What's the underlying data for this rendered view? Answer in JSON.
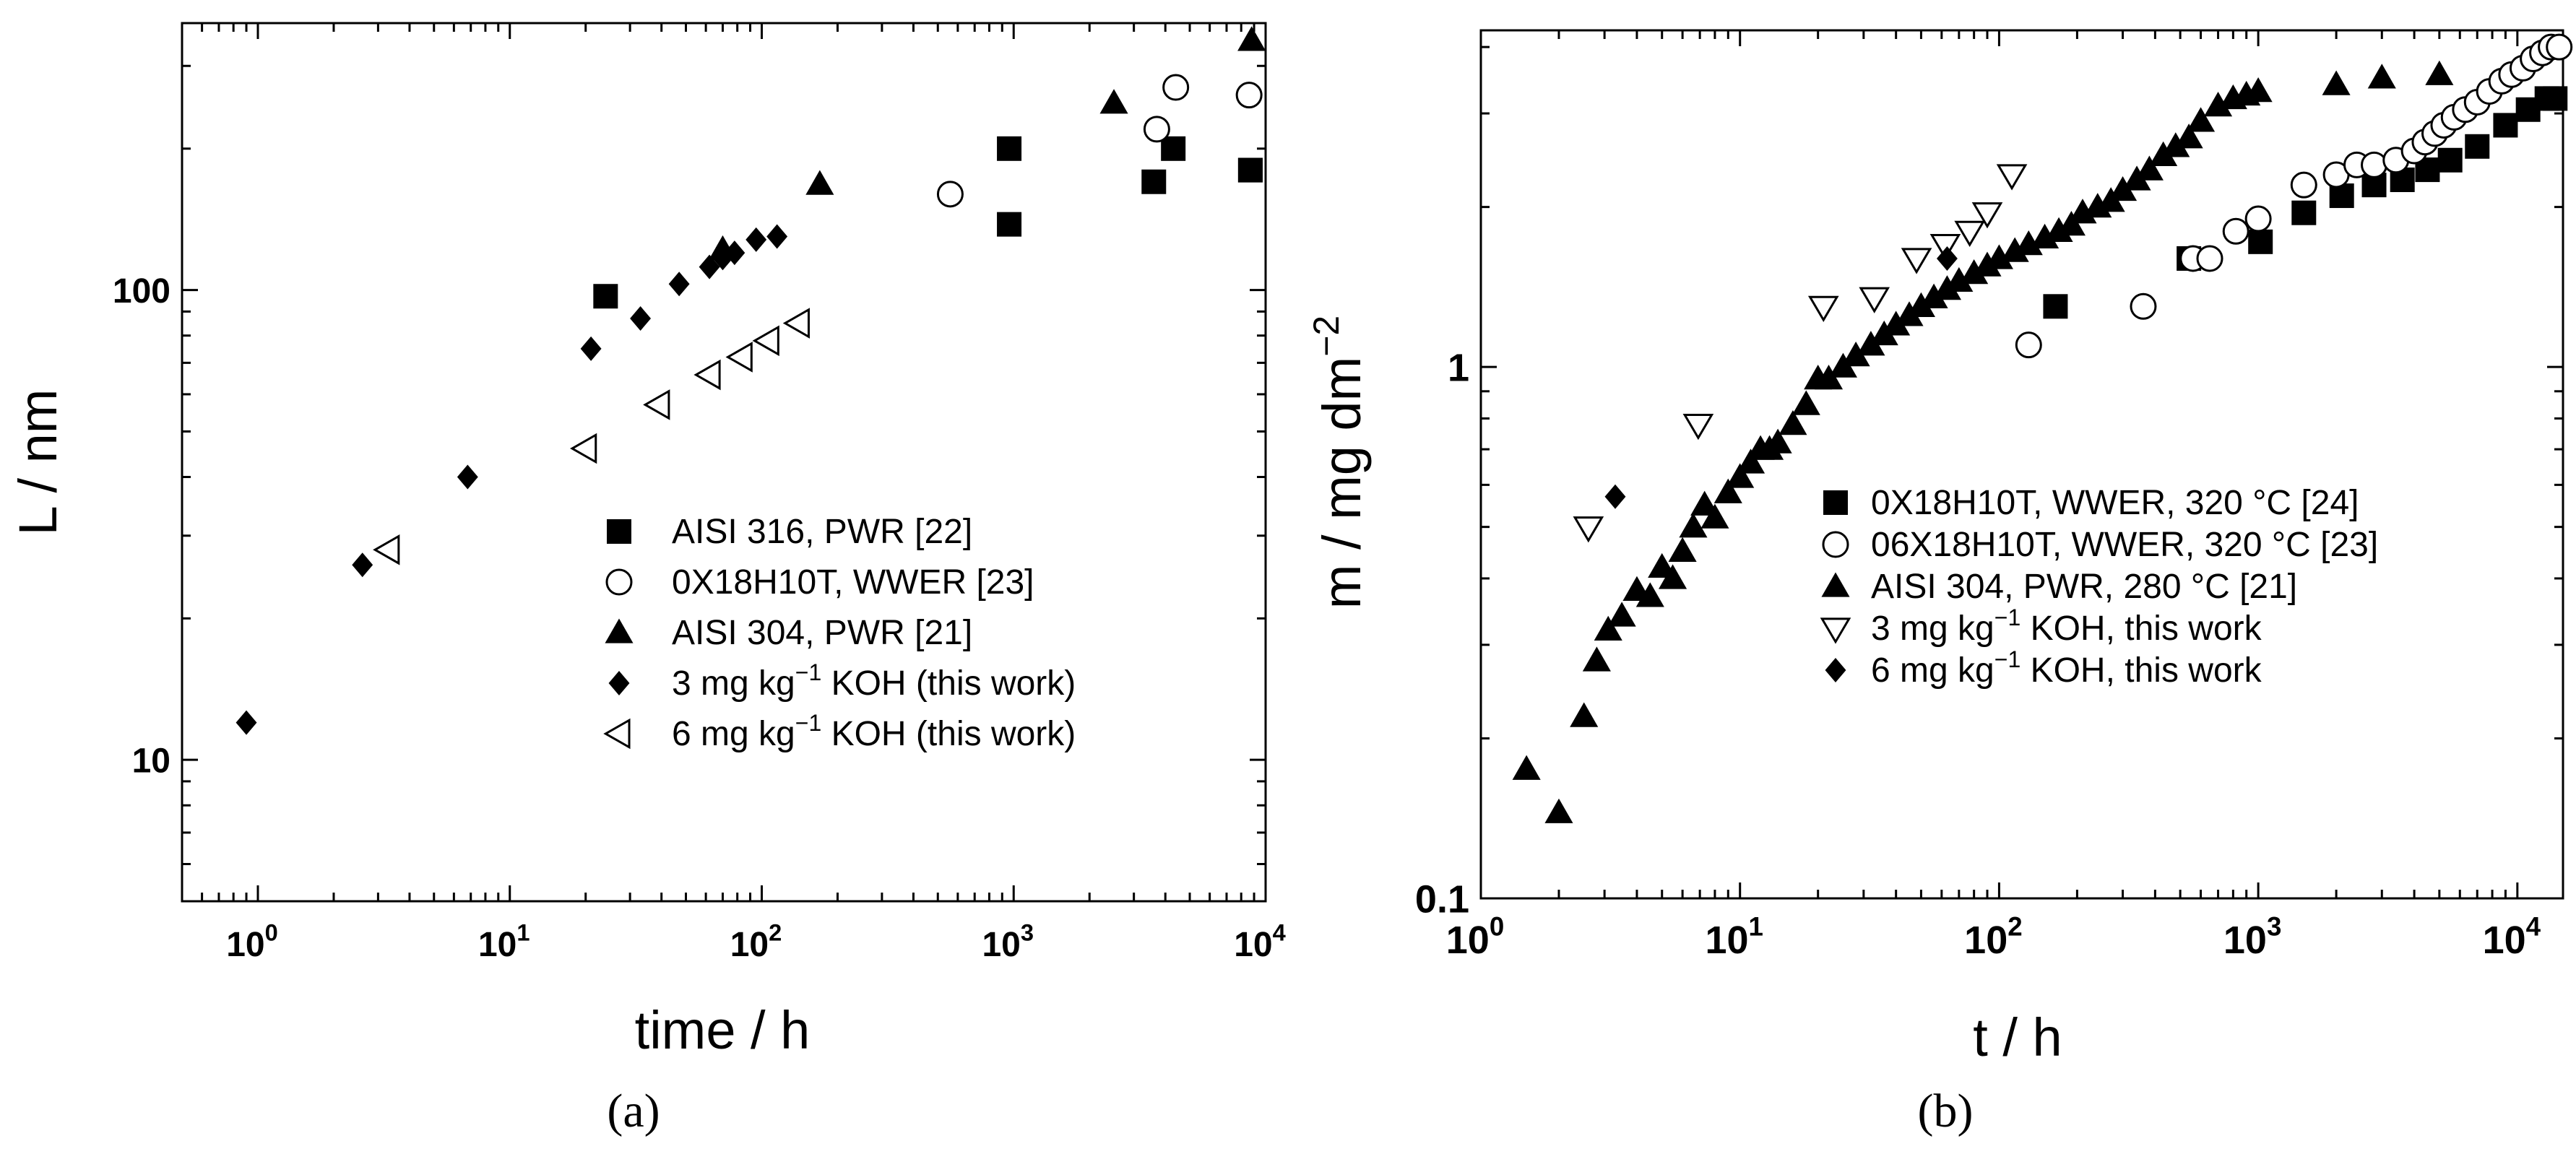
{
  "chart_data": [
    {
      "id": "a",
      "type": "scatter",
      "caption": "(a)",
      "xlabel": "time / h",
      "ylabel": "L / nm",
      "xscale": "log",
      "yscale": "log",
      "xlim": [
        0.5,
        10000
      ],
      "ylim": [
        5,
        370
      ],
      "xticks": [
        {
          "value": 1,
          "base": "10",
          "exp": "0"
        },
        {
          "value": 10,
          "base": "10",
          "exp": "1"
        },
        {
          "value": 100,
          "base": "10",
          "exp": "2"
        },
        {
          "value": 1000,
          "base": "10",
          "exp": "3"
        },
        {
          "value": 10000,
          "base": "10",
          "exp": "4"
        }
      ],
      "yticks": [
        {
          "value": 10,
          "label": "10"
        },
        {
          "value": 100,
          "label": "100"
        }
      ],
      "legend_position": "bottom-right",
      "series": [
        {
          "name": "AISI 316, PWR [22]",
          "label_parts": [
            "AISI 316, PWR [22]"
          ],
          "marker": "square",
          "x": [
            24,
            960,
            3600,
            4300,
            8700,
            960,
            8700
          ],
          "y": [
            97,
            200,
            170,
            200,
            180,
            138,
            180
          ]
        },
        {
          "name": "0X18H10T, WWER [23]",
          "label_parts": [
            "0X18H10T, WWER [23]"
          ],
          "marker": "circle",
          "x": [
            560,
            3700,
            4400,
            8600
          ],
          "y": [
            160,
            220,
            270,
            260
          ]
        },
        {
          "name": "AISI 304, PWR [21]",
          "label_parts": [
            "AISI 304, PWR [21]"
          ],
          "marker": "triangle-up",
          "x": [
            70,
            170,
            2500,
            8800
          ],
          "y": [
            122,
            168,
            250,
            340
          ]
        },
        {
          "name": "3 mg kg⁻¹ KOH (this work)",
          "label_parts": [
            "3 mg kg",
            "−1",
            " KOH (this work)"
          ],
          "marker": "diamond",
          "x": [
            0.9,
            2.6,
            6.8,
            21,
            33,
            47,
            62,
            70,
            78,
            95,
            115
          ],
          "y": [
            12,
            26,
            40,
            75,
            87,
            103,
            112,
            117,
            120,
            128,
            130
          ]
        },
        {
          "name": "6 mg kg⁻¹ KOH (this work)",
          "label_parts": [
            "6 mg kg",
            "−1",
            " KOH (this work)"
          ],
          "marker": "triangle-left",
          "x": [
            3.3,
            20,
            39,
            62,
            83,
            106,
            140
          ],
          "y": [
            28,
            46,
            57,
            66,
            72,
            78,
            85
          ]
        }
      ]
    },
    {
      "id": "b",
      "type": "scatter",
      "caption": "(b)",
      "xlabel": "t / h",
      "ylabel_parts": [
        "m / mg dm",
        "−2"
      ],
      "xscale": "log",
      "yscale": "log",
      "xlim": [
        1,
        15000
      ],
      "ylim": [
        0.1,
        4.3
      ],
      "xticks": [
        {
          "value": 1,
          "base": "10",
          "exp": "0"
        },
        {
          "value": 10,
          "base": "10",
          "exp": "1"
        },
        {
          "value": 100,
          "base": "10",
          "exp": "2"
        },
        {
          "value": 1000,
          "base": "10",
          "exp": "3"
        },
        {
          "value": 10000,
          "base": "10",
          "exp": "4"
        }
      ],
      "yticks": [
        {
          "value": 0.1,
          "label": "0.1"
        },
        {
          "value": 1,
          "label": "1"
        }
      ],
      "legend_position": "center-right",
      "series": [
        {
          "name": "0X18H10T, WWER, 320 °C [24]",
          "label_parts": [
            "0X18H10T, WWER, 320 °C [24]"
          ],
          "marker": "square",
          "x": [
            165,
            540,
            1020,
            1500,
            2100,
            2800,
            3600,
            4500,
            5500,
            7000,
            9000,
            11000,
            13000,
            14000
          ],
          "y": [
            1.3,
            1.6,
            1.72,
            1.95,
            2.1,
            2.2,
            2.25,
            2.35,
            2.45,
            2.6,
            2.85,
            3.05,
            3.2,
            3.2
          ]
        },
        {
          "name": "06X18H10T, WWER, 320 °C [23]",
          "label_parts": [
            "06X18H10T, WWER, 320 °C [23]"
          ],
          "marker": "circle",
          "x": [
            130,
            360,
            560,
            650,
            820,
            1000,
            1500,
            2000,
            2400,
            2800,
            3400,
            4000,
            4400,
            4800,
            5200,
            5700,
            6300,
            7000,
            7800,
            8700,
            9500,
            10500,
            11500,
            12500,
            13500,
            14500
          ],
          "y": [
            1.1,
            1.3,
            1.6,
            1.6,
            1.8,
            1.9,
            2.2,
            2.3,
            2.4,
            2.4,
            2.45,
            2.55,
            2.65,
            2.75,
            2.85,
            2.95,
            3.05,
            3.15,
            3.3,
            3.45,
            3.55,
            3.65,
            3.8,
            3.9,
            4.0,
            4.0
          ]
        },
        {
          "name": "AISI 304, PWR, 280 °C [21]",
          "label_parts": [
            "AISI 304, PWR, 280 °C [21]"
          ],
          "marker": "triangle-up",
          "x": [
            1.5,
            2.0,
            2.5,
            2.8,
            3.1,
            3.5,
            4.0,
            4.5,
            5.0,
            5.5,
            6.0,
            6.6,
            7.3,
            8,
            9,
            10,
            11,
            12,
            13,
            14,
            16,
            18,
            20,
            22,
            25,
            28,
            32,
            36,
            40,
            45,
            50,
            56,
            63,
            70,
            80,
            90,
            100,
            115,
            130,
            150,
            170,
            190,
            210,
            240,
            270,
            300,
            340,
            380,
            430,
            480,
            540,
            600,
            700,
            800,
            900,
            1000,
            2000,
            3000,
            5000
          ],
          "y": [
            0.175,
            0.145,
            0.22,
            0.28,
            0.32,
            0.34,
            0.38,
            0.37,
            0.42,
            0.4,
            0.45,
            0.5,
            0.55,
            0.52,
            0.58,
            0.62,
            0.66,
            0.7,
            0.7,
            0.72,
            0.78,
            0.85,
            0.95,
            0.95,
            1.0,
            1.05,
            1.1,
            1.15,
            1.2,
            1.25,
            1.3,
            1.35,
            1.4,
            1.45,
            1.5,
            1.55,
            1.6,
            1.65,
            1.7,
            1.75,
            1.8,
            1.85,
            1.95,
            2.0,
            2.05,
            2.15,
            2.25,
            2.35,
            2.5,
            2.6,
            2.7,
            2.9,
            3.1,
            3.2,
            3.25,
            3.3,
            3.4,
            3.5,
            3.55
          ]
        },
        {
          "name": "3 mg kg⁻¹ KOH, this work",
          "label_parts": [
            "3 mg kg",
            "−1",
            " KOH, this work"
          ],
          "marker": "triangle-down",
          "x": [
            2.6,
            6.9,
            21,
            33,
            48,
            62,
            77,
            90,
            112
          ],
          "y": [
            0.5,
            0.78,
            1.3,
            1.35,
            1.6,
            1.7,
            1.8,
            1.95,
            2.3
          ]
        },
        {
          "name": "6 mg kg⁻¹ KOH, this work",
          "label_parts": [
            "6 mg kg",
            "−1",
            " KOH, this work"
          ],
          "marker": "diamond",
          "x": [
            3.3,
            63
          ],
          "y": [
            0.57,
            1.6
          ]
        }
      ]
    }
  ]
}
